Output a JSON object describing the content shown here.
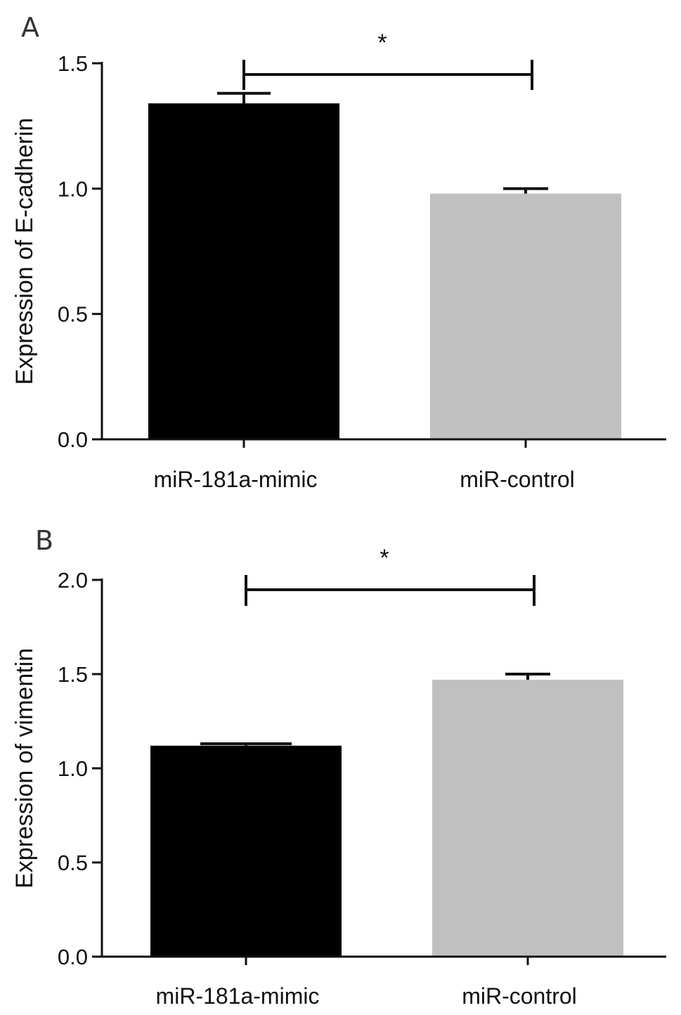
{
  "chart_data": [
    {
      "type": "bar",
      "panel": "A",
      "categories": [
        "miR-181a-mimic",
        "miR-control"
      ],
      "values": [
        1.34,
        0.98
      ],
      "errors": [
        0.04,
        0.02
      ],
      "ylabel": "Expression of E-cadherin",
      "ylim": [
        0,
        1.5
      ],
      "yticks": [
        "0.0",
        "0.5",
        "1.0",
        "1.5"
      ],
      "bar_colors": [
        "#000000",
        "#c0c0c0"
      ],
      "significance": {
        "label": "*",
        "between": [
          0,
          1
        ]
      },
      "grid": false
    },
    {
      "type": "bar",
      "panel": "B",
      "categories": [
        "miR-181a-mimic",
        "miR-control"
      ],
      "values": [
        1.12,
        1.47
      ],
      "errors": [
        0.01,
        0.03
      ],
      "ylabel": "Expression of vimentin",
      "ylim": [
        0,
        2.0
      ],
      "yticks": [
        "0.0",
        "0.5",
        "1.0",
        "1.5",
        "2.0"
      ],
      "bar_colors": [
        "#000000",
        "#c0c0c0"
      ],
      "significance": {
        "label": "*",
        "between": [
          0,
          1
        ]
      },
      "grid": false
    }
  ]
}
